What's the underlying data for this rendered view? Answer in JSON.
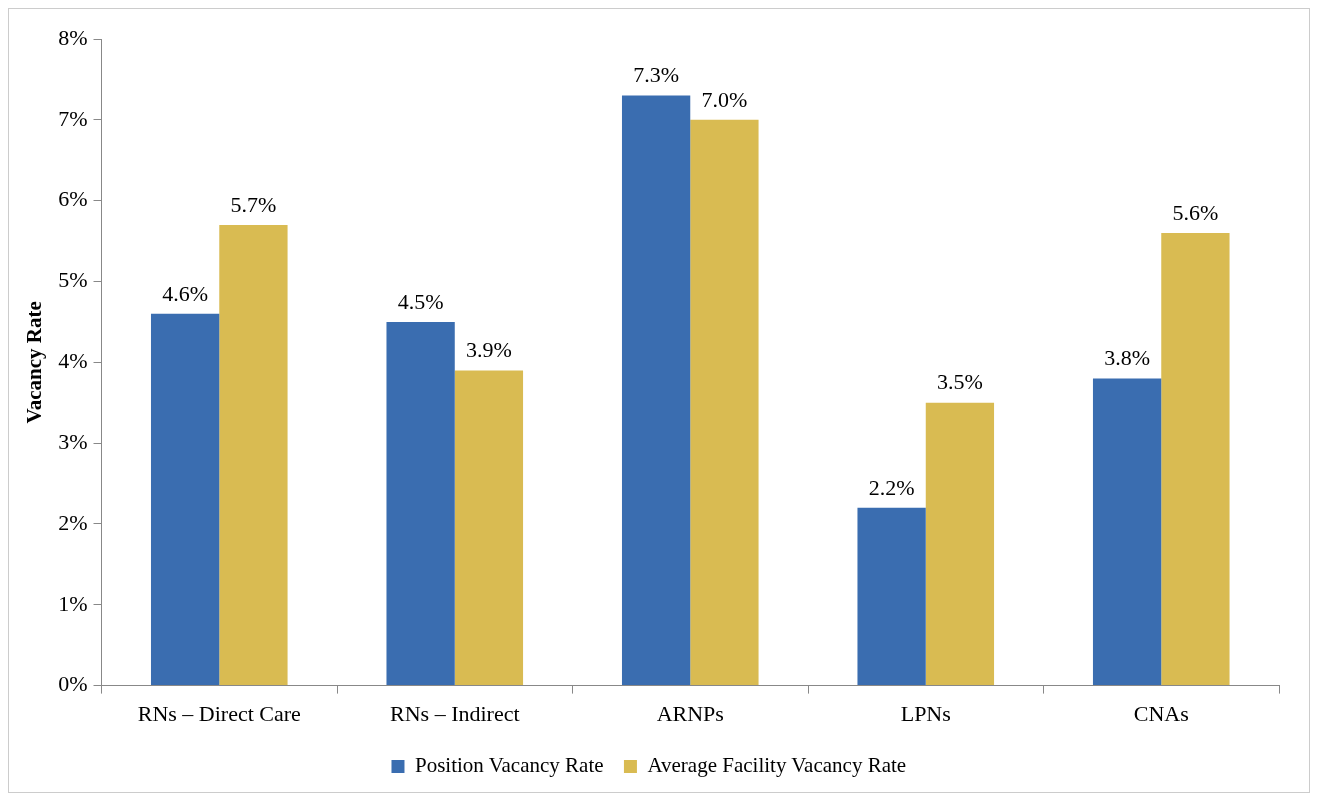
{
  "chart_data": {
    "type": "bar",
    "ylabel": "Vacancy Rate",
    "categories": [
      "RNs – Direct Care",
      "RNs – Indirect",
      "ARNPs",
      "LPNs",
      "CNAs"
    ],
    "series": [
      {
        "name": "Position Vacancy Rate",
        "color": "#3a6db0",
        "values": [
          4.6,
          4.5,
          7.3,
          2.2,
          3.8
        ],
        "value_labels": [
          "4.6%",
          "4.5%",
          "7.3%",
          "2.2%",
          "3.8%"
        ]
      },
      {
        "name": "Average Facility Vacancy Rate",
        "color": "#d9bb52",
        "values": [
          5.7,
          3.9,
          7.0,
          3.5,
          5.6
        ],
        "value_labels": [
          "5.7%",
          "3.9%",
          "7.0%",
          "3.5%",
          "5.6%"
        ]
      }
    ],
    "ylim": [
      0,
      8
    ],
    "yticks": [
      {
        "value": 0,
        "label": "0%"
      },
      {
        "value": 1,
        "label": "1%"
      },
      {
        "value": 2,
        "label": "2%"
      },
      {
        "value": 3,
        "label": "3%"
      },
      {
        "value": 4,
        "label": "4%"
      },
      {
        "value": 5,
        "label": "5%"
      },
      {
        "value": 6,
        "label": "6%"
      },
      {
        "value": 7,
        "label": "7%"
      },
      {
        "value": 8,
        "label": "8%"
      }
    ],
    "grid": false,
    "legend": "bottom"
  }
}
